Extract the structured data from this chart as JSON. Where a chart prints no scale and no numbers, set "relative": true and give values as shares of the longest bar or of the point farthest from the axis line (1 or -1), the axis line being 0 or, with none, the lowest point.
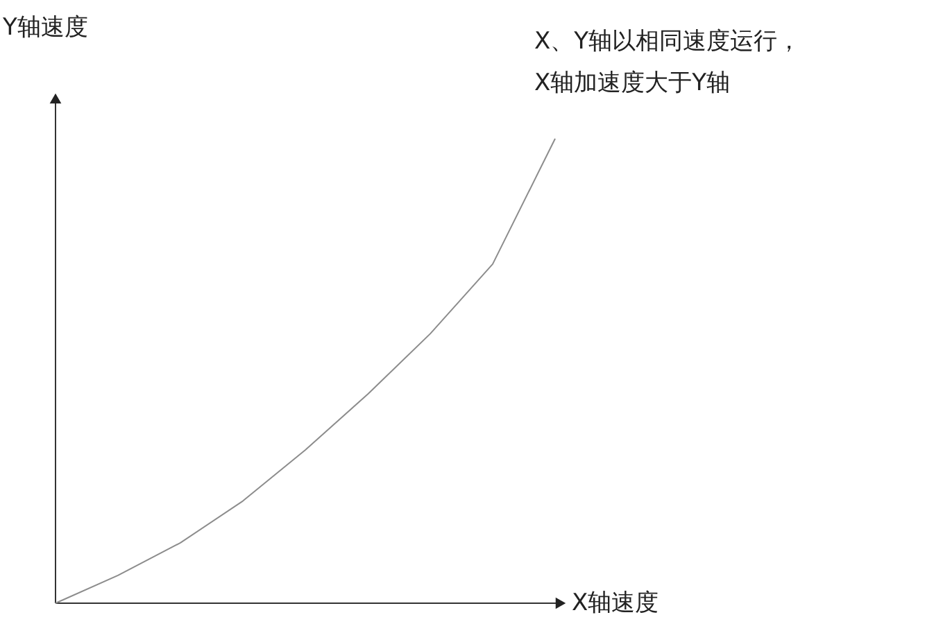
{
  "chart_data": {
    "type": "line",
    "relative": true,
    "xlabel": "X轴速度",
    "ylabel": "Y轴速度",
    "annotations": [
      "X、Y轴以相同速度运行，",
      "X轴加速度大于Y轴"
    ],
    "categories": [
      null,
      null,
      null,
      null,
      null,
      null,
      null,
      null,
      null
    ],
    "series": [
      {
        "color": "#8c8c8c",
        "values": [
          0,
          0.06,
          0.13,
          0.22,
          0.33,
          0.45,
          0.58,
          0.73,
          1.0
        ]
      }
    ],
    "marker": "none"
  }
}
